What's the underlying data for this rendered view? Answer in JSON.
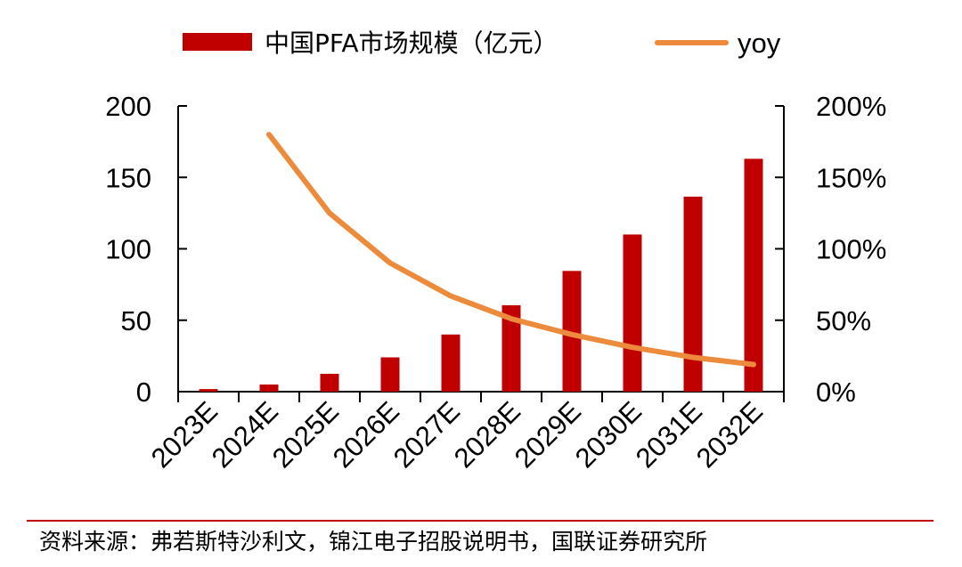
{
  "chart_data": {
    "type": "bar",
    "categories": [
      "2023E",
      "2024E",
      "2025E",
      "2026E",
      "2027E",
      "2028E",
      "2029E",
      "2030E",
      "2031E",
      "2032E"
    ],
    "series": [
      {
        "name": "中国PFA市场规模（亿元）",
        "type": "bar",
        "axis": "left",
        "color": "#C00000",
        "values": [
          1.8,
          5,
          12.5,
          24,
          40,
          60.5,
          84.5,
          110,
          136.5,
          163
        ]
      },
      {
        "name": "yoy",
        "type": "line",
        "axis": "right",
        "color": "#ED8B3C",
        "values": [
          null,
          1.8,
          1.25,
          0.9,
          0.67,
          0.51,
          0.4,
          0.31,
          0.24,
          0.19
        ]
      }
    ],
    "y_left": {
      "min": 0,
      "max": 200,
      "ticks": [
        "0",
        "50",
        "100",
        "150",
        "200"
      ],
      "tick_values": [
        0,
        50,
        100,
        150,
        200
      ]
    },
    "y_right": {
      "min": 0,
      "max": 2,
      "ticks": [
        "0%",
        "50%",
        "100%",
        "150%",
        "200%"
      ],
      "tick_values": [
        0,
        0.5,
        1,
        1.5,
        2
      ]
    },
    "legend_position": "top",
    "grid": false
  },
  "source_note": "资料来源：弗若斯特沙利文，锦江电子招股说明书，国联证券研究所"
}
